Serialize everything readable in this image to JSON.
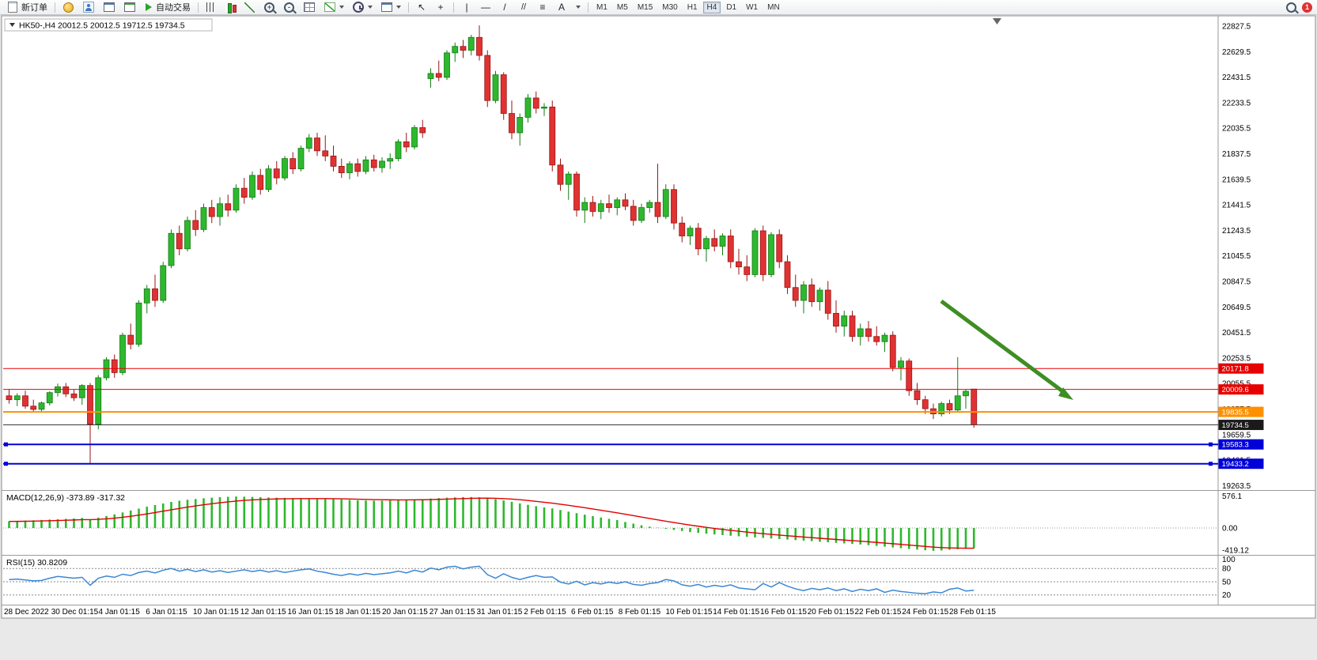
{
  "toolbar": {
    "new_order": "新订单",
    "autotrade": "自动交易",
    "text_tool": "A",
    "timeframes": [
      "M1",
      "M5",
      "M15",
      "M30",
      "H1",
      "H4",
      "D1",
      "W1",
      "MN"
    ],
    "active_timeframe": "H4",
    "notification_badge": "1"
  },
  "chart": {
    "symbol_period": "HK50-,H4",
    "ohlc_text": "20012.5 20012.5 19712.5 19734.5"
  },
  "chart_data": {
    "type": "candlestick",
    "symbol": "HK50-",
    "timeframe": "H4",
    "title": "HK50-,H4 20012.5 20012.5 19712.5 19734.5",
    "current_bar": {
      "open": 20012.5,
      "high": 20012.5,
      "low": 19712.5,
      "close": 19734.5
    },
    "up_color": "#2eb82e",
    "down_color": "#e03232",
    "y_axis_labels": [
      "22827.5",
      "22629.5",
      "22431.5",
      "22233.5",
      "22035.5",
      "21837.5",
      "21639.5",
      "21441.5",
      "21243.5",
      "21045.5",
      "20847.5",
      "20649.5",
      "20451.5",
      "20253.5",
      "20055.5",
      "19857.5",
      "19659.5",
      "19461.5",
      "19263.5"
    ],
    "time_labels": [
      "28 Dec 2022",
      "30 Dec 01:15",
      "4 Jan 01:15",
      "6 Jan 01:15",
      "10 Jan 01:15",
      "12 Jan 01:15",
      "16 Jan 01:15",
      "18 Jan 01:15",
      "20 Jan 01:15",
      "27 Jan 01:15",
      "31 Jan 01:15",
      "2 Feb 01:15",
      "6 Feb 01:15",
      "8 Feb 01:15",
      "10 Feb 01:15",
      "14 Feb 01:15",
      "16 Feb 01:15",
      "20 Feb 01:15",
      "22 Feb 01:15",
      "24 Feb 01:15",
      "28 Feb 01:15"
    ],
    "price_lines": [
      {
        "label": "20171.8",
        "price": 20171.8,
        "color": "#e80000",
        "width": 1,
        "handles": false
      },
      {
        "label": "20009.6",
        "price": 20009.6,
        "color": "#e80000",
        "width": 1,
        "handles": false
      },
      {
        "label": "19835.5",
        "price": 19835.5,
        "color": "#ff9000",
        "width": 2,
        "handles": false
      },
      {
        "label": "19734.5",
        "price": 19734.5,
        "color": "#3a3a3a",
        "width": 1,
        "tag": "#1a1a1a",
        "role": "current-price",
        "handles": false
      },
      {
        "label": "19583.3",
        "price": 19583.3,
        "color": "#0000d8",
        "width": 2,
        "handles": true
      },
      {
        "label": "19433.2",
        "price": 19433.2,
        "color": "#0000d8",
        "width": 2,
        "handles": true
      }
    ],
    "annotation_arrow": {
      "color": "#3e8e23",
      "from": [
        1190,
        381
      ],
      "to": [
        1350,
        500
      ]
    },
    "candles": [
      [
        19960,
        20010,
        19900,
        19930
      ],
      [
        19930,
        19980,
        19880,
        19960
      ],
      [
        19960,
        20000,
        19860,
        19880
      ],
      [
        19880,
        19930,
        19830,
        19855
      ],
      [
        19855,
        19915,
        19835,
        19905
      ],
      [
        19905,
        19995,
        19885,
        19985
      ],
      [
        19985,
        20055,
        19955,
        20030
      ],
      [
        20030,
        20060,
        19950,
        19975
      ],
      [
        19975,
        20010,
        19920,
        19945
      ],
      [
        19945,
        20050,
        19890,
        20040
      ],
      [
        20040,
        20060,
        19430,
        19740
      ],
      [
        19740,
        20120,
        19700,
        20100
      ],
      [
        20100,
        20260,
        20080,
        20240
      ],
      [
        20240,
        20280,
        20100,
        20140
      ],
      [
        20140,
        20450,
        20120,
        20430
      ],
      [
        20430,
        20520,
        20320,
        20360
      ],
      [
        20360,
        20700,
        20340,
        20680
      ],
      [
        20680,
        20820,
        20600,
        20790
      ],
      [
        20790,
        20900,
        20650,
        20700
      ],
      [
        20700,
        21000,
        20680,
        20970
      ],
      [
        20970,
        21250,
        20950,
        21220
      ],
      [
        21220,
        21280,
        21050,
        21100
      ],
      [
        21100,
        21350,
        21080,
        21320
      ],
      [
        21320,
        21400,
        21200,
        21250
      ],
      [
        21250,
        21450,
        21230,
        21420
      ],
      [
        21420,
        21480,
        21300,
        21350
      ],
      [
        21350,
        21500,
        21280,
        21450
      ],
      [
        21450,
        21520,
        21350,
        21400
      ],
      [
        21400,
        21600,
        21380,
        21570
      ],
      [
        21570,
        21650,
        21450,
        21500
      ],
      [
        21500,
        21700,
        21480,
        21670
      ],
      [
        21670,
        21720,
        21520,
        21560
      ],
      [
        21560,
        21750,
        21540,
        21720
      ],
      [
        21720,
        21780,
        21600,
        21650
      ],
      [
        21650,
        21820,
        21630,
        21800
      ],
      [
        21800,
        21850,
        21680,
        21720
      ],
      [
        21720,
        21900,
        21700,
        21880
      ],
      [
        21880,
        21990,
        21850,
        21960
      ],
      [
        21960,
        22000,
        21820,
        21860
      ],
      [
        21860,
        21980,
        21780,
        21820
      ],
      [
        21820,
        21900,
        21700,
        21740
      ],
      [
        21740,
        21800,
        21650,
        21690
      ],
      [
        21690,
        21780,
        21640,
        21760
      ],
      [
        21760,
        21800,
        21660,
        21700
      ],
      [
        21700,
        21820,
        21680,
        21790
      ],
      [
        21790,
        21830,
        21700,
        21730
      ],
      [
        21730,
        21810,
        21690,
        21780
      ],
      [
        21780,
        21840,
        21720,
        21800
      ],
      [
        21800,
        21950,
        21780,
        21930
      ],
      [
        21930,
        22000,
        21850,
        21890
      ],
      [
        21890,
        22060,
        21870,
        22040
      ],
      [
        22040,
        22100,
        21960,
        22000
      ],
      [
        22420,
        22500,
        22350,
        22460
      ],
      [
        22460,
        22560,
        22400,
        22430
      ],
      [
        22430,
        22640,
        22410,
        22620
      ],
      [
        22620,
        22700,
        22550,
        22670
      ],
      [
        22670,
        22720,
        22580,
        22640
      ],
      [
        22640,
        22760,
        22600,
        22740
      ],
      [
        22740,
        22833,
        22560,
        22600
      ],
      [
        22600,
        22640,
        22200,
        22250
      ],
      [
        22250,
        22480,
        22230,
        22450
      ],
      [
        22450,
        22470,
        22100,
        22150
      ],
      [
        22150,
        22250,
        21950,
        22000
      ],
      [
        22000,
        22150,
        21900,
        22120
      ],
      [
        22120,
        22300,
        22080,
        22270
      ],
      [
        22270,
        22320,
        22150,
        22190
      ],
      [
        22190,
        22230,
        22130,
        22200
      ],
      [
        22200,
        22250,
        21700,
        21750
      ],
      [
        21750,
        21800,
        21550,
        21600
      ],
      [
        21600,
        21700,
        21480,
        21680
      ],
      [
        21680,
        21700,
        21350,
        21400
      ],
      [
        21400,
        21500,
        21300,
        21460
      ],
      [
        21460,
        21510,
        21350,
        21390
      ],
      [
        21390,
        21480,
        21330,
        21450
      ],
      [
        21450,
        21520,
        21380,
        21420
      ],
      [
        21420,
        21500,
        21360,
        21480
      ],
      [
        21480,
        21530,
        21400,
        21430
      ],
      [
        21430,
        21480,
        21280,
        21320
      ],
      [
        21320,
        21450,
        21300,
        21420
      ],
      [
        21420,
        21480,
        21380,
        21460
      ],
      [
        21460,
        21760,
        21300,
        21350
      ],
      [
        21350,
        21600,
        21330,
        21560
      ],
      [
        21560,
        21600,
        21250,
        21300
      ],
      [
        21300,
        21350,
        21150,
        21200
      ],
      [
        21200,
        21280,
        21130,
        21260
      ],
      [
        21260,
        21300,
        21050,
        21100
      ],
      [
        21100,
        21200,
        21000,
        21180
      ],
      [
        21180,
        21250,
        21080,
        21120
      ],
      [
        21120,
        21220,
        21050,
        21200
      ],
      [
        21200,
        21250,
        20950,
        21000
      ],
      [
        21000,
        21100,
        20900,
        20960
      ],
      [
        20960,
        21050,
        20850,
        20900
      ],
      [
        20900,
        21260,
        20880,
        21240
      ],
      [
        21240,
        21280,
        20850,
        20900
      ],
      [
        20900,
        21230,
        20880,
        21210
      ],
      [
        21210,
        21250,
        20950,
        21000
      ],
      [
        21000,
        21050,
        20750,
        20800
      ],
      [
        20800,
        20900,
        20650,
        20700
      ],
      [
        20700,
        20850,
        20600,
        20820
      ],
      [
        20820,
        20870,
        20650,
        20690
      ],
      [
        20690,
        20800,
        20620,
        20780
      ],
      [
        20780,
        20850,
        20550,
        20600
      ],
      [
        20600,
        20700,
        20450,
        20500
      ],
      [
        20500,
        20620,
        20420,
        20580
      ],
      [
        20580,
        20620,
        20380,
        20420
      ],
      [
        20420,
        20520,
        20350,
        20480
      ],
      [
        20480,
        20540,
        20380,
        20420
      ],
      [
        20420,
        20500,
        20350,
        20380
      ],
      [
        20380,
        20450,
        20300,
        20430
      ],
      [
        20430,
        20460,
        20150,
        20180
      ],
      [
        20180,
        20260,
        20080,
        20230
      ],
      [
        20230,
        20250,
        19960,
        20000
      ],
      [
        20000,
        20060,
        19890,
        19930
      ],
      [
        19930,
        19960,
        19820,
        19860
      ],
      [
        19860,
        19900,
        19780,
        19820
      ],
      [
        19820,
        19915,
        19800,
        19900
      ],
      [
        19900,
        19930,
        19820,
        19850
      ],
      [
        19850,
        20260,
        19840,
        19960
      ],
      [
        19960,
        20010,
        19860,
        19995
      ],
      [
        20012.5,
        20012.5,
        19712.5,
        19734.5
      ]
    ],
    "indicators": [
      {
        "name": "MACD",
        "label": "MACD(12,26,9) -373.89 -317.32",
        "main_value": "-373.89",
        "signal_value": "-317.32",
        "axis_labels": [
          "576.1",
          "0.00",
          "-419.12"
        ],
        "histogram_color": "#2eb82e",
        "signal_color": "#e00000",
        "histogram": [
          120,
          128,
          135,
          140,
          148,
          155,
          162,
          168,
          175,
          185,
          160,
          190,
          220,
          250,
          285,
          320,
          355,
          390,
          420,
          450,
          478,
          500,
          518,
          532,
          545,
          556,
          565,
          572,
          576,
          574,
          570,
          565,
          560,
          556,
          552,
          548,
          545,
          542,
          540,
          536,
          530,
          522,
          514,
          508,
          504,
          502,
          502,
          505,
          510,
          516,
          522,
          528,
          540,
          548,
          556,
          562,
          566,
          568,
          564,
          552,
          530,
          505,
          480,
          452,
          425,
          400,
          378,
          358,
          330,
          300,
          272,
          245,
          218,
          192,
          168,
          145,
          110,
          80,
          50,
          25,
          5,
          -15,
          -35,
          -55,
          -75,
          -90,
          -105,
          -118,
          -130,
          -142,
          -152,
          -162,
          -172,
          -182,
          -192,
          -202,
          -212,
          -222,
          -232,
          -242,
          -252,
          -262,
          -272,
          -282,
          -292,
          -302,
          -315,
          -328,
          -342,
          -356,
          -370,
          -384,
          -396,
          -408,
          -419.12,
          -412,
          -400,
          -388,
          -380,
          -373.89
        ]
      },
      {
        "name": "RSI",
        "label": "RSI(15) 30.8209",
        "value": "30.8209",
        "axis_labels": [
          "100",
          "80",
          "50",
          "20"
        ],
        "levels": [
          80,
          50,
          20
        ],
        "line_color": "#3a87d6",
        "values": [
          55,
          56,
          54,
          52,
          53,
          58,
          62,
          60,
          58,
          60,
          42,
          58,
          63,
          60,
          67,
          64,
          71,
          74,
          70,
          76,
          80,
          74,
          78,
          73,
          77,
          72,
          75,
          71,
          74,
          77,
          73,
          76,
          72,
          75,
          71,
          74,
          77,
          79,
          74,
          71,
          67,
          64,
          68,
          65,
          69,
          66,
          68,
          70,
          74,
          70,
          76,
          72,
          81,
          77,
          83,
          85,
          79,
          83,
          85,
          66,
          58,
          68,
          60,
          55,
          60,
          64,
          60,
          61,
          49,
          45,
          51,
          43,
          48,
          45,
          49,
          46,
          50,
          44,
          42,
          46,
          48,
          55,
          52,
          43,
          40,
          44,
          38,
          42,
          39,
          43,
          36,
          34,
          32,
          46,
          38,
          48,
          40,
          34,
          30,
          35,
          32,
          36,
          30,
          34,
          28,
          33,
          30,
          34,
          26,
          31,
          28,
          26,
          24,
          23,
          27,
          25,
          33,
          36,
          29,
          30.8
        ]
      }
    ]
  }
}
